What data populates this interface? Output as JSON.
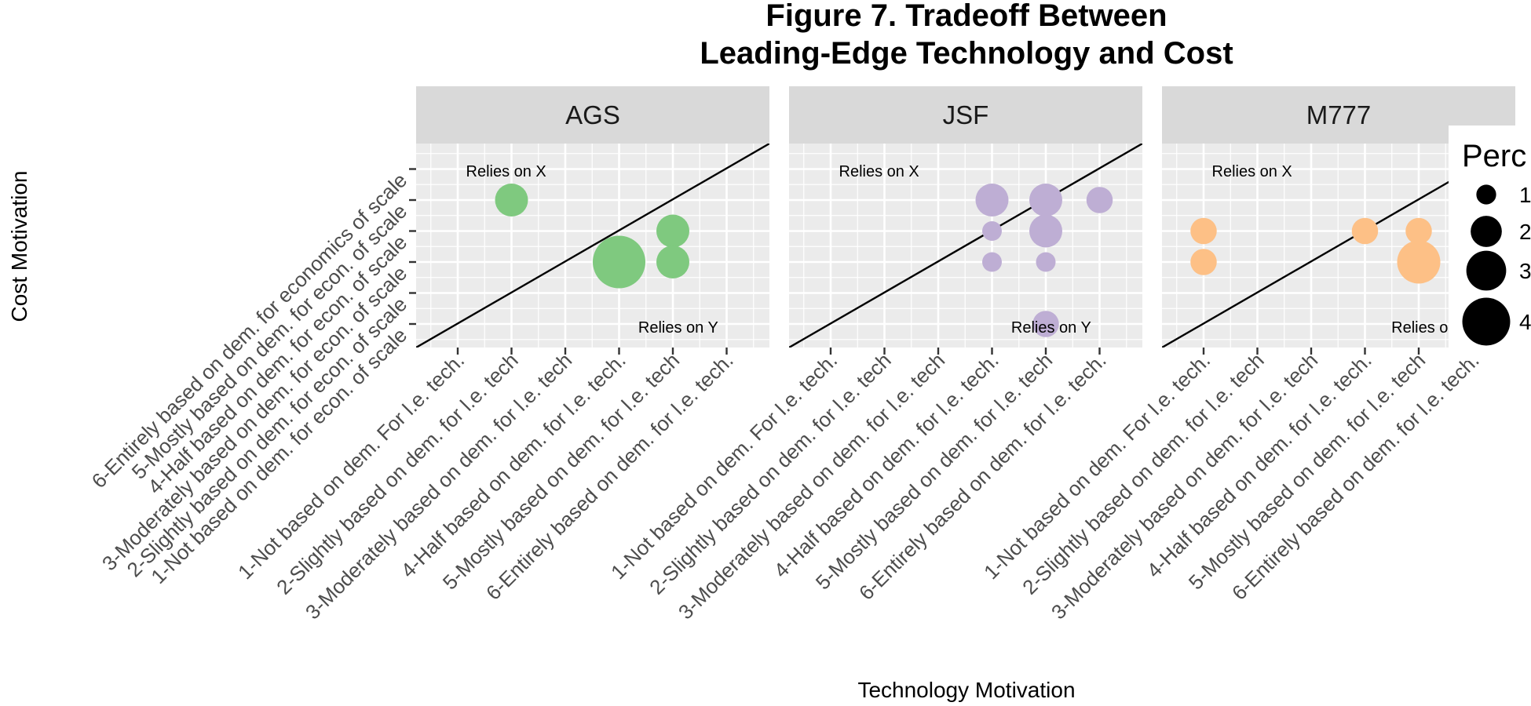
{
  "chart_data": {
    "type": "scatter",
    "title_lines": [
      "Figure 7. Tradeoff Between",
      "Leading-Edge Technology and Cost"
    ],
    "xlabel": "Technology Motivation",
    "ylabel": "Cost Motivation",
    "x_categories": [
      "1-Not based on dem. For l.e. tech.",
      "2-Slightly based on dem. for l.e. tech",
      "3-Moderately based on dem. for l.e. tech",
      "4-Half based on dem. for l.e. tech.",
      "5-Mostly based on dem. for l.e. tech",
      "6-Entirely based on dem. for l.e. tech."
    ],
    "y_categories": [
      "1-Not based on dem. for econ. of scale",
      "2-Slightly based on dem. for econ. of scale",
      "3-Moderately based on dem. for econ. of scale",
      "4-Half based on dem. for econ. of scale",
      "5-Mostly based on dem. for econ. of scale",
      "6-Entirely based on dem. for economics of scale"
    ],
    "grid": true,
    "reference_line": "y = x",
    "legend": {
      "title": "Perc",
      "placement": "right",
      "entries": [
        {
          "label": "1",
          "size": 1
        },
        {
          "label": "2",
          "size": 2
        },
        {
          "label": "3",
          "size": 3
        },
        {
          "label": "4",
          "size": 4
        }
      ]
    },
    "panels": [
      {
        "name": "AGS",
        "color": "#7fc97f",
        "annotations": [
          "Relies on X",
          "Relies on Y"
        ],
        "points": [
          {
            "x": 2,
            "y": 5,
            "size": 2
          },
          {
            "x": 4,
            "y": 3,
            "size": 4
          },
          {
            "x": 5,
            "y": 4,
            "size": 2
          },
          {
            "x": 5,
            "y": 3,
            "size": 2
          }
        ]
      },
      {
        "name": "JSF",
        "color": "#beaed4",
        "annotations": [
          "Relies on X",
          "Relies on Y"
        ],
        "points": [
          {
            "x": 4,
            "y": 5,
            "size": 2
          },
          {
            "x": 4,
            "y": 4,
            "size": 1
          },
          {
            "x": 4,
            "y": 3,
            "size": 1
          },
          {
            "x": 5,
            "y": 5,
            "size": 2
          },
          {
            "x": 5,
            "y": 4,
            "size": 2
          },
          {
            "x": 5,
            "y": 3,
            "size": 1
          },
          {
            "x": 5,
            "y": 1,
            "size": 1.5
          },
          {
            "x": 6,
            "y": 5,
            "size": 1.5
          }
        ]
      },
      {
        "name": "M777",
        "color": "#fdc086",
        "annotations": [
          "Relies on X",
          "Relies on"
        ],
        "points": [
          {
            "x": 1,
            "y": 4,
            "size": 1.5
          },
          {
            "x": 1,
            "y": 3,
            "size": 1.5
          },
          {
            "x": 4,
            "y": 4,
            "size": 1.5
          },
          {
            "x": 5,
            "y": 4,
            "size": 1.5
          },
          {
            "x": 5,
            "y": 3,
            "size": 3
          }
        ]
      }
    ]
  }
}
